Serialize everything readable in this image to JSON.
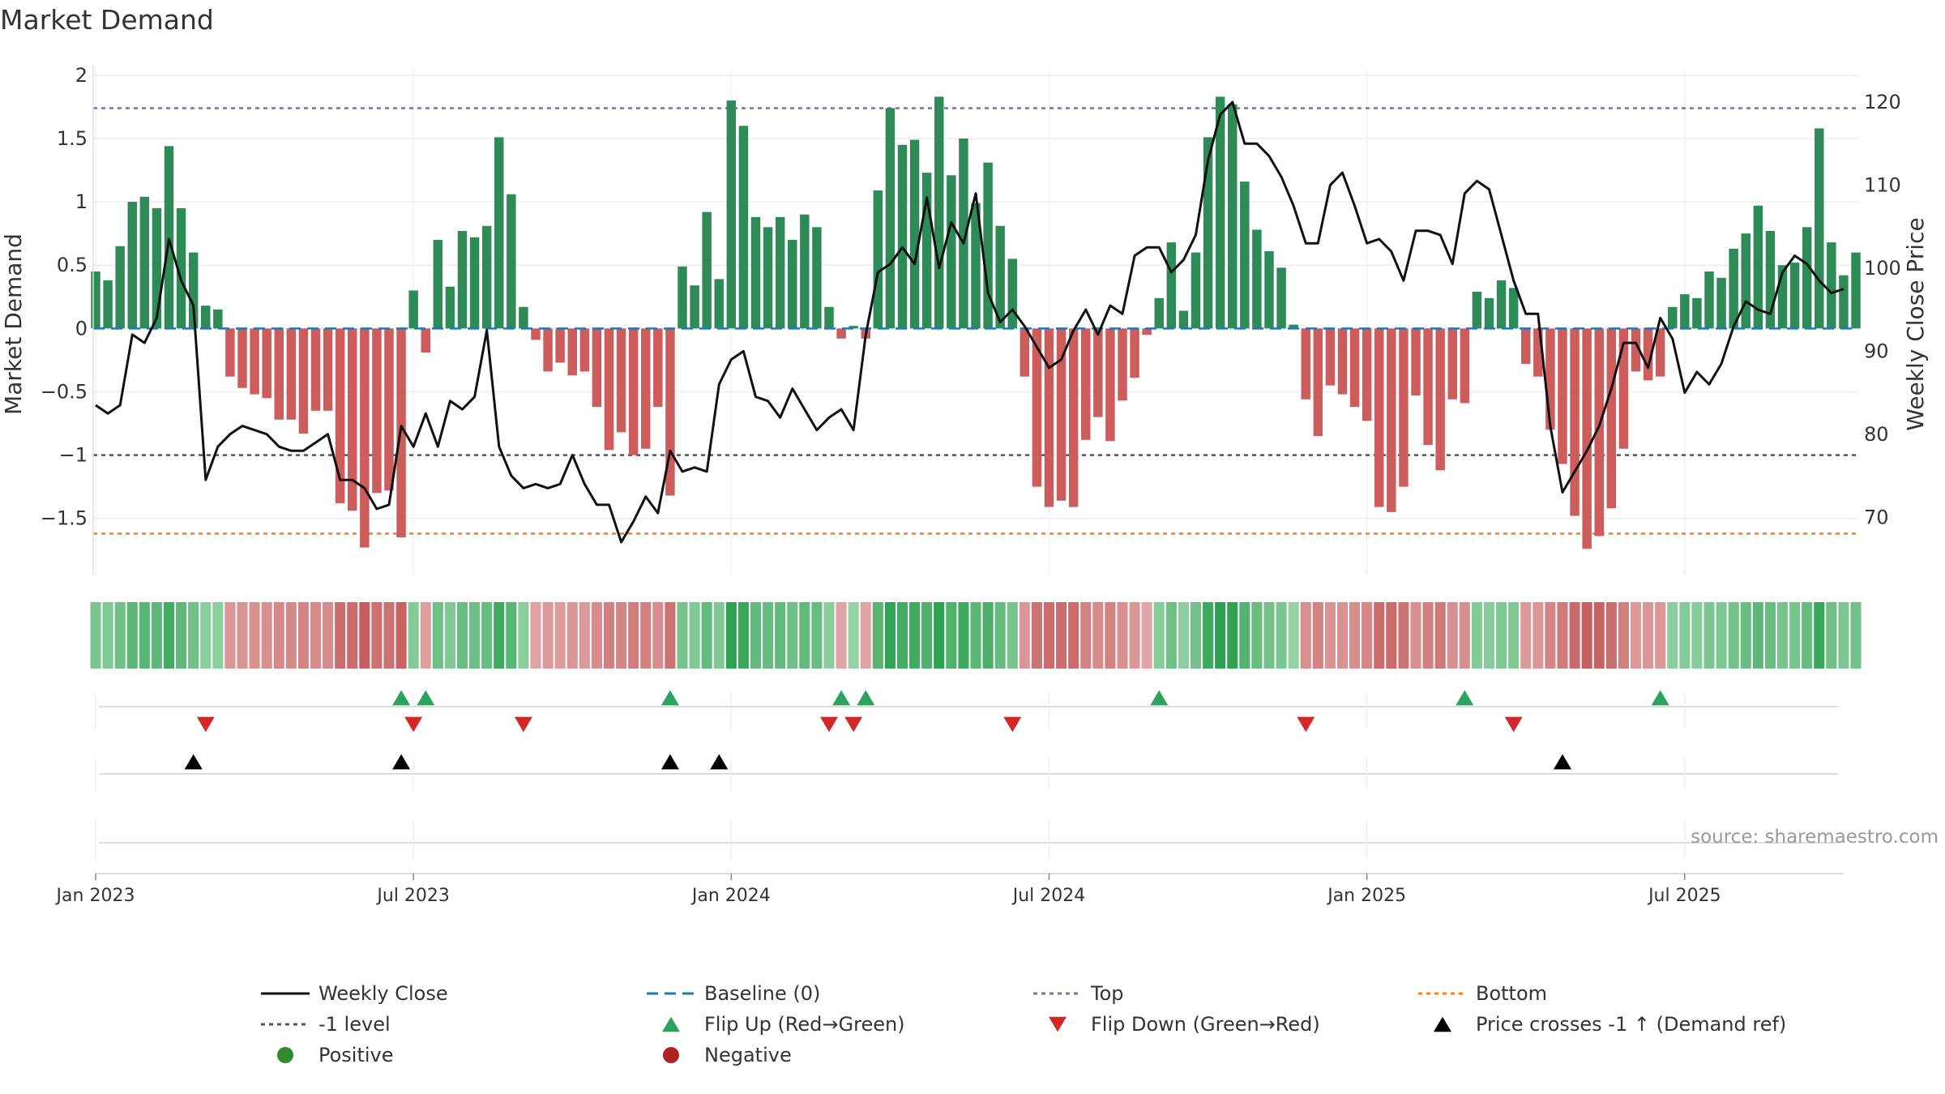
{
  "chart_data": {
    "type": "bar",
    "title": "Market Demand",
    "ylabel_left": "Market Demand",
    "ylabel_right": "Weekly Close Price",
    "source": "source: sharemaestro.com",
    "ylim_left": [
      -1.95,
      2.05
    ],
    "ylim_right": [
      63,
      124
    ],
    "left_ticks": [
      {
        "v": 2,
        "label": "2"
      },
      {
        "v": 1.5,
        "label": "1.5"
      },
      {
        "v": 1,
        "label": "1"
      },
      {
        "v": 0.5,
        "label": "0.5"
      },
      {
        "v": 0,
        "label": "0"
      },
      {
        "v": -0.5,
        "label": "−0.5"
      },
      {
        "v": -1,
        "label": "−1"
      },
      {
        "v": -1.5,
        "label": "−1.5"
      }
    ],
    "right_ticks": [
      {
        "v": 120,
        "label": "120"
      },
      {
        "v": 110,
        "label": "110"
      },
      {
        "v": 100,
        "label": "100"
      },
      {
        "v": 90,
        "label": "90"
      },
      {
        "v": 80,
        "label": "80"
      },
      {
        "v": 70,
        "label": "70"
      }
    ],
    "x_ticks": [
      {
        "week": 1,
        "label": "Jan 2023"
      },
      {
        "week": 27,
        "label": "Jul 2023"
      },
      {
        "week": 53,
        "label": "Jan 2024"
      },
      {
        "week": 79,
        "label": "Jul 2024"
      },
      {
        "week": 105,
        "label": "Jan 2025"
      },
      {
        "week": 131,
        "label": "Jul 2025"
      }
    ],
    "levels": {
      "top": 1.74,
      "minus_one": -1.0,
      "bottom": -1.62,
      "baseline": 0
    },
    "demand": [
      0.45,
      0.38,
      0.65,
      1.0,
      1.04,
      0.95,
      1.44,
      0.95,
      0.6,
      0.18,
      0.15,
      -0.38,
      -0.47,
      -0.52,
      -0.55,
      -0.72,
      -0.72,
      -0.83,
      -0.65,
      -0.65,
      -1.38,
      -1.44,
      -1.73,
      -1.3,
      -1.28,
      -1.65,
      0.3,
      -0.19,
      0.7,
      0.33,
      0.77,
      0.72,
      0.81,
      1.51,
      1.06,
      0.17,
      -0.09,
      -0.34,
      -0.27,
      -0.37,
      -0.34,
      -0.62,
      -0.96,
      -0.82,
      -1.0,
      -0.95,
      -0.62,
      -1.32,
      0.49,
      0.34,
      0.92,
      0.39,
      1.8,
      1.6,
      0.88,
      0.8,
      0.88,
      0.7,
      0.9,
      0.8,
      0.17,
      -0.08,
      0.02,
      -0.08,
      1.09,
      1.74,
      1.45,
      1.49,
      1.23,
      1.83,
      1.21,
      1.5,
      0.99,
      1.31,
      0.81,
      0.55,
      -0.38,
      -1.25,
      -1.41,
      -1.36,
      -1.41,
      -0.88,
      -0.7,
      -0.89,
      -0.57,
      -0.39,
      -0.05,
      0.24,
      0.68,
      0.14,
      0.6,
      1.51,
      1.83,
      1.77,
      1.16,
      0.78,
      0.61,
      0.48,
      0.03,
      -0.56,
      -0.85,
      -0.45,
      -0.52,
      -0.62,
      -0.73,
      -1.41,
      -1.45,
      -1.25,
      -0.53,
      -0.92,
      -1.12,
      -0.56,
      -0.59,
      0.29,
      0.24,
      0.38,
      0.32,
      -0.28,
      -0.38,
      -0.8,
      -1.07,
      -1.48,
      -1.74,
      -1.64,
      -1.42,
      -0.95,
      -0.34,
      -0.41,
      -0.38,
      0.17,
      0.27,
      0.24,
      0.45,
      0.4,
      0.63,
      0.75,
      0.97,
      0.77,
      0.5,
      0.52,
      0.8,
      1.58,
      0.68,
      0.42,
      0.6
    ],
    "price": [
      83.5,
      82.5,
      83.5,
      92,
      91,
      94,
      103.5,
      98.5,
      95.5,
      74.5,
      78.5,
      80,
      81,
      80.5,
      80,
      78.5,
      78,
      78,
      79,
      80,
      74.5,
      74.5,
      73.5,
      71,
      71.5,
      81,
      78.5,
      82.5,
      78.5,
      84,
      83,
      84.5,
      92.5,
      78.5,
      75,
      73.5,
      74,
      73.5,
      74,
      77.5,
      74,
      71.5,
      71.5,
      67,
      69.5,
      72.5,
      70.5,
      78,
      75.5,
      76,
      75.5,
      86,
      89,
      90,
      84.5,
      84,
      82,
      85.5,
      83,
      80.5,
      82,
      83,
      80.5,
      92,
      99.5,
      100.5,
      102.5,
      100.5,
      108.5,
      100,
      105.5,
      103,
      109,
      97,
      93.5,
      95,
      93,
      90.5,
      88,
      89,
      92.5,
      95,
      92,
      95.5,
      94.5,
      101.5,
      102.5,
      102.5,
      99.5,
      101,
      104,
      113,
      118.5,
      120,
      115,
      115,
      113.5,
      111,
      107.5,
      103,
      103,
      110,
      111.5,
      107.5,
      103,
      103.5,
      102,
      98.5,
      104.5,
      104.5,
      104,
      100.5,
      109,
      110.5,
      109.5,
      104,
      98.5,
      94.5,
      94.5,
      81,
      73,
      75.5,
      78,
      81,
      85.5,
      91,
      91,
      88,
      94,
      91.5,
      85,
      87.5,
      86,
      88.5,
      93,
      96,
      95,
      94.5,
      99.5,
      101.5,
      100.5,
      98.5,
      97,
      97.5
    ],
    "heat_strip": "colored by market demand, one cell per week",
    "flip_up_weeks": [
      26,
      28,
      48,
      62,
      64,
      88,
      113,
      129
    ],
    "flip_down_weeks": [
      10,
      27,
      36,
      61,
      63,
      76,
      100,
      117
    ],
    "price_cross_weeks": [
      9,
      26,
      48,
      52,
      121
    ],
    "legend": [
      {
        "kind": "line",
        "label": "Weekly Close",
        "color": "#111111"
      },
      {
        "kind": "dash",
        "label": "Baseline (0)",
        "color": "#1f77b4"
      },
      {
        "kind": "dot",
        "label": "Top",
        "color": "#7570b3"
      },
      {
        "kind": "dot",
        "label": "Bottom",
        "color": "#ff7f0e"
      },
      {
        "kind": "dot",
        "label": "-1 level",
        "color": "#555555"
      },
      {
        "kind": "tri-up",
        "label": "Flip Up (Red→Green)",
        "color": "#2ca25f"
      },
      {
        "kind": "tri-down",
        "label": "Flip Down (Green→Red)",
        "color": "#d62728"
      },
      {
        "kind": "tri-up",
        "label": "Price crosses -1 ↑ (Demand ref)",
        "color": "#000000"
      },
      {
        "kind": "circle",
        "label": "Positive",
        "color": "#2e8b2e"
      },
      {
        "kind": "circle",
        "label": "Negative",
        "color": "#b22222"
      }
    ],
    "colors": {
      "positive_bar": "#2e8b57",
      "negative_bar": "#cd5c5c",
      "price_line": "#111111",
      "top": "#7570b3",
      "bottom": "#ff7f0e",
      "baseline": "#1f77b4",
      "minus_one": "#555555"
    }
  }
}
